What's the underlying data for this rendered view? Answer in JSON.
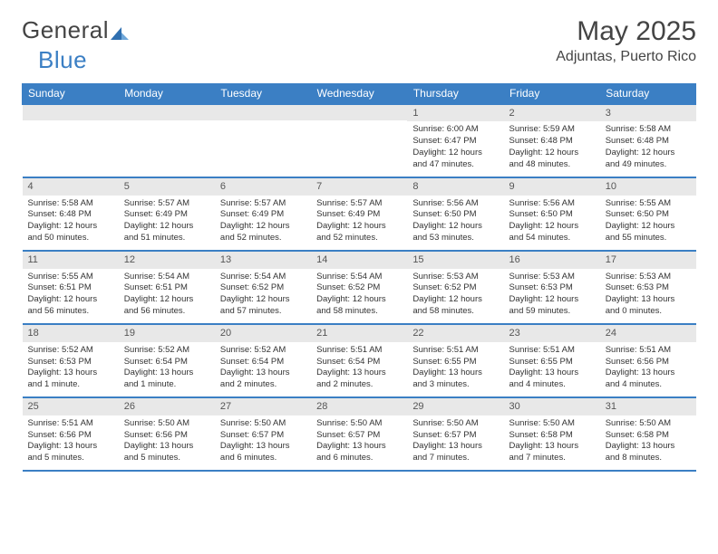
{
  "logo": {
    "text_general": "General",
    "text_blue": "Blue"
  },
  "title": "May 2025",
  "location": "Adjuntas, Puerto Rico",
  "colors": {
    "accent": "#3b7fc4",
    "header_text": "#ffffff",
    "daynum_bg": "#e8e8e8",
    "text": "#333333"
  },
  "day_headers": [
    "Sunday",
    "Monday",
    "Tuesday",
    "Wednesday",
    "Thursday",
    "Friday",
    "Saturday"
  ],
  "weeks": [
    [
      {
        "n": "",
        "lines": []
      },
      {
        "n": "",
        "lines": []
      },
      {
        "n": "",
        "lines": []
      },
      {
        "n": "",
        "lines": []
      },
      {
        "n": "1",
        "lines": [
          "Sunrise: 6:00 AM",
          "Sunset: 6:47 PM",
          "Daylight: 12 hours",
          "and 47 minutes."
        ]
      },
      {
        "n": "2",
        "lines": [
          "Sunrise: 5:59 AM",
          "Sunset: 6:48 PM",
          "Daylight: 12 hours",
          "and 48 minutes."
        ]
      },
      {
        "n": "3",
        "lines": [
          "Sunrise: 5:58 AM",
          "Sunset: 6:48 PM",
          "Daylight: 12 hours",
          "and 49 minutes."
        ]
      }
    ],
    [
      {
        "n": "4",
        "lines": [
          "Sunrise: 5:58 AM",
          "Sunset: 6:48 PM",
          "Daylight: 12 hours",
          "and 50 minutes."
        ]
      },
      {
        "n": "5",
        "lines": [
          "Sunrise: 5:57 AM",
          "Sunset: 6:49 PM",
          "Daylight: 12 hours",
          "and 51 minutes."
        ]
      },
      {
        "n": "6",
        "lines": [
          "Sunrise: 5:57 AM",
          "Sunset: 6:49 PM",
          "Daylight: 12 hours",
          "and 52 minutes."
        ]
      },
      {
        "n": "7",
        "lines": [
          "Sunrise: 5:57 AM",
          "Sunset: 6:49 PM",
          "Daylight: 12 hours",
          "and 52 minutes."
        ]
      },
      {
        "n": "8",
        "lines": [
          "Sunrise: 5:56 AM",
          "Sunset: 6:50 PM",
          "Daylight: 12 hours",
          "and 53 minutes."
        ]
      },
      {
        "n": "9",
        "lines": [
          "Sunrise: 5:56 AM",
          "Sunset: 6:50 PM",
          "Daylight: 12 hours",
          "and 54 minutes."
        ]
      },
      {
        "n": "10",
        "lines": [
          "Sunrise: 5:55 AM",
          "Sunset: 6:50 PM",
          "Daylight: 12 hours",
          "and 55 minutes."
        ]
      }
    ],
    [
      {
        "n": "11",
        "lines": [
          "Sunrise: 5:55 AM",
          "Sunset: 6:51 PM",
          "Daylight: 12 hours",
          "and 56 minutes."
        ]
      },
      {
        "n": "12",
        "lines": [
          "Sunrise: 5:54 AM",
          "Sunset: 6:51 PM",
          "Daylight: 12 hours",
          "and 56 minutes."
        ]
      },
      {
        "n": "13",
        "lines": [
          "Sunrise: 5:54 AM",
          "Sunset: 6:52 PM",
          "Daylight: 12 hours",
          "and 57 minutes."
        ]
      },
      {
        "n": "14",
        "lines": [
          "Sunrise: 5:54 AM",
          "Sunset: 6:52 PM",
          "Daylight: 12 hours",
          "and 58 minutes."
        ]
      },
      {
        "n": "15",
        "lines": [
          "Sunrise: 5:53 AM",
          "Sunset: 6:52 PM",
          "Daylight: 12 hours",
          "and 58 minutes."
        ]
      },
      {
        "n": "16",
        "lines": [
          "Sunrise: 5:53 AM",
          "Sunset: 6:53 PM",
          "Daylight: 12 hours",
          "and 59 minutes."
        ]
      },
      {
        "n": "17",
        "lines": [
          "Sunrise: 5:53 AM",
          "Sunset: 6:53 PM",
          "Daylight: 13 hours",
          "and 0 minutes."
        ]
      }
    ],
    [
      {
        "n": "18",
        "lines": [
          "Sunrise: 5:52 AM",
          "Sunset: 6:53 PM",
          "Daylight: 13 hours",
          "and 1 minute."
        ]
      },
      {
        "n": "19",
        "lines": [
          "Sunrise: 5:52 AM",
          "Sunset: 6:54 PM",
          "Daylight: 13 hours",
          "and 1 minute."
        ]
      },
      {
        "n": "20",
        "lines": [
          "Sunrise: 5:52 AM",
          "Sunset: 6:54 PM",
          "Daylight: 13 hours",
          "and 2 minutes."
        ]
      },
      {
        "n": "21",
        "lines": [
          "Sunrise: 5:51 AM",
          "Sunset: 6:54 PM",
          "Daylight: 13 hours",
          "and 2 minutes."
        ]
      },
      {
        "n": "22",
        "lines": [
          "Sunrise: 5:51 AM",
          "Sunset: 6:55 PM",
          "Daylight: 13 hours",
          "and 3 minutes."
        ]
      },
      {
        "n": "23",
        "lines": [
          "Sunrise: 5:51 AM",
          "Sunset: 6:55 PM",
          "Daylight: 13 hours",
          "and 4 minutes."
        ]
      },
      {
        "n": "24",
        "lines": [
          "Sunrise: 5:51 AM",
          "Sunset: 6:56 PM",
          "Daylight: 13 hours",
          "and 4 minutes."
        ]
      }
    ],
    [
      {
        "n": "25",
        "lines": [
          "Sunrise: 5:51 AM",
          "Sunset: 6:56 PM",
          "Daylight: 13 hours",
          "and 5 minutes."
        ]
      },
      {
        "n": "26",
        "lines": [
          "Sunrise: 5:50 AM",
          "Sunset: 6:56 PM",
          "Daylight: 13 hours",
          "and 5 minutes."
        ]
      },
      {
        "n": "27",
        "lines": [
          "Sunrise: 5:50 AM",
          "Sunset: 6:57 PM",
          "Daylight: 13 hours",
          "and 6 minutes."
        ]
      },
      {
        "n": "28",
        "lines": [
          "Sunrise: 5:50 AM",
          "Sunset: 6:57 PM",
          "Daylight: 13 hours",
          "and 6 minutes."
        ]
      },
      {
        "n": "29",
        "lines": [
          "Sunrise: 5:50 AM",
          "Sunset: 6:57 PM",
          "Daylight: 13 hours",
          "and 7 minutes."
        ]
      },
      {
        "n": "30",
        "lines": [
          "Sunrise: 5:50 AM",
          "Sunset: 6:58 PM",
          "Daylight: 13 hours",
          "and 7 minutes."
        ]
      },
      {
        "n": "31",
        "lines": [
          "Sunrise: 5:50 AM",
          "Sunset: 6:58 PM",
          "Daylight: 13 hours",
          "and 8 minutes."
        ]
      }
    ]
  ]
}
